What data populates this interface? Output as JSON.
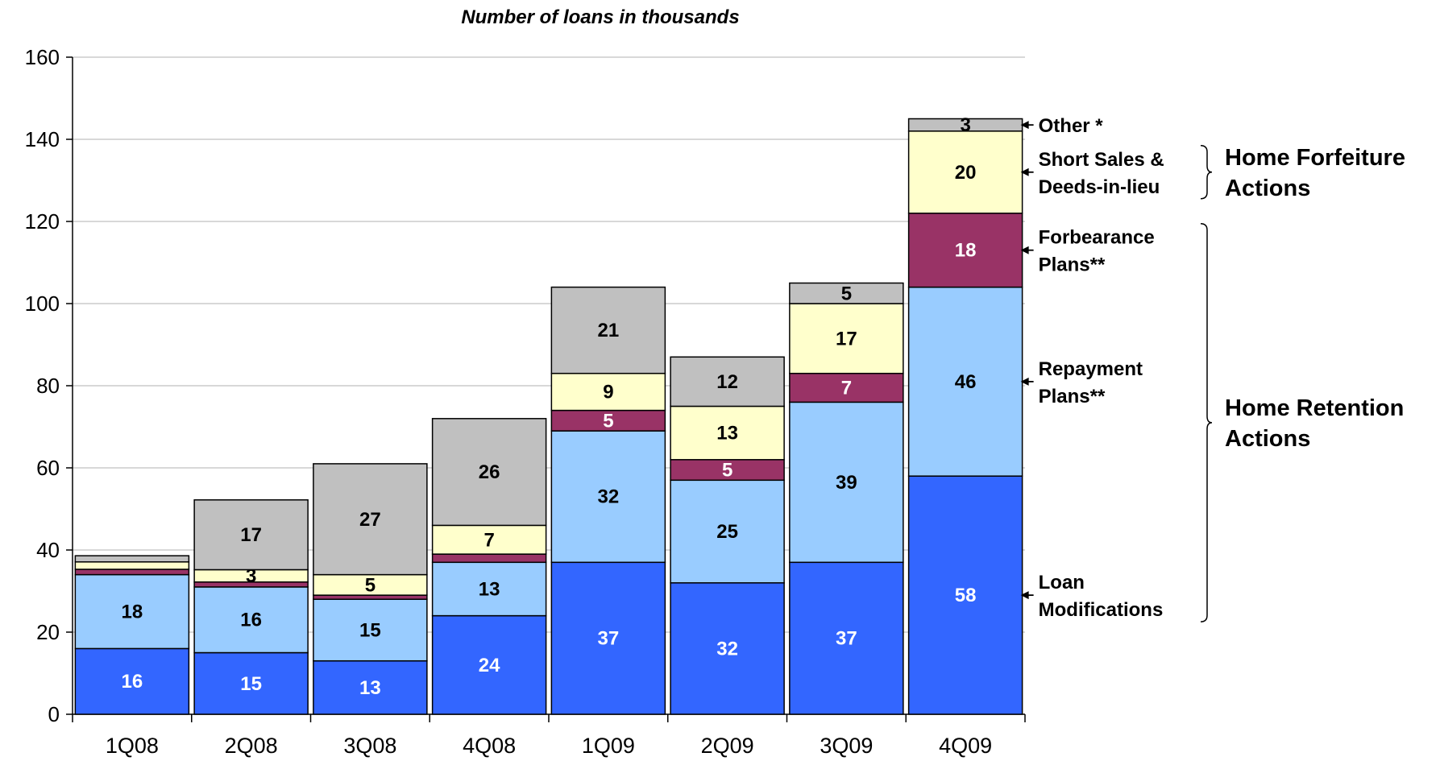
{
  "chart_data": {
    "type": "bar",
    "stacked": true,
    "title": "Number of loans in thousands",
    "categories": [
      "1Q08",
      "2Q08",
      "3Q08",
      "4Q08",
      "1Q09",
      "2Q09",
      "3Q09",
      "4Q09"
    ],
    "y_ticks": [
      "0",
      "20",
      "40",
      "60",
      "80",
      "100",
      "120",
      "140",
      "160"
    ],
    "ylim": [
      0,
      160
    ],
    "grid": true,
    "series": [
      {
        "key": "loan_mod",
        "color": "#3366FF",
        "label_color": "#FFFFFF",
        "values": [
          16,
          15,
          13,
          24,
          37,
          32,
          37,
          58
        ],
        "labels": [
          "16",
          "15",
          "13",
          "24",
          "37",
          "32",
          "37",
          "58"
        ]
      },
      {
        "key": "repay",
        "color": "#99CCFF",
        "label_color": "#000000",
        "values": [
          18,
          16,
          15,
          13,
          32,
          25,
          39,
          46
        ],
        "labels": [
          "18",
          "16",
          "15",
          "13",
          "32",
          "25",
          "39",
          "46"
        ]
      },
      {
        "key": "forbear",
        "color": "#993366",
        "label_color": "#FFFFFF",
        "values": [
          1.3,
          1.2,
          1.0,
          2.0,
          5,
          5,
          7,
          18
        ],
        "labels": [
          "",
          "",
          "",
          "",
          "5",
          "5",
          "7",
          "18"
        ]
      },
      {
        "key": "short_sales",
        "color": "#FFFFCC",
        "label_color": "#000000",
        "values": [
          1.8,
          3,
          5,
          7,
          9,
          13,
          17,
          20
        ],
        "labels": [
          "",
          "3",
          "5",
          "7",
          "9",
          "13",
          "17",
          "20"
        ]
      },
      {
        "key": "other",
        "color": "#C0C0C0",
        "label_color": "#000000",
        "values": [
          1.5,
          17,
          27,
          26,
          21,
          12,
          5,
          3
        ],
        "labels": [
          "",
          "17",
          "27",
          "26",
          "21",
          "12",
          "5",
          "3"
        ]
      }
    ],
    "annotations": [
      {
        "series": "other",
        "lines": [
          "Other *"
        ]
      },
      {
        "series": "short_sales",
        "lines": [
          "Short Sales &",
          "Deeds-in-lieu"
        ]
      },
      {
        "series": "forbear",
        "lines": [
          "Forbearance",
          "Plans**"
        ]
      },
      {
        "series": "repay",
        "lines": [
          "Repayment",
          "Plans**"
        ]
      },
      {
        "series": "loan_mod",
        "lines": [
          "Loan",
          "Modifications"
        ]
      }
    ],
    "groups": [
      {
        "lines": [
          "Home Forfeiture",
          "Actions"
        ],
        "series": [
          "short_sales"
        ]
      },
      {
        "lines": [
          "Home Retention",
          "Actions"
        ],
        "series": [
          "forbear",
          "repay",
          "loan_mod"
        ]
      }
    ]
  }
}
